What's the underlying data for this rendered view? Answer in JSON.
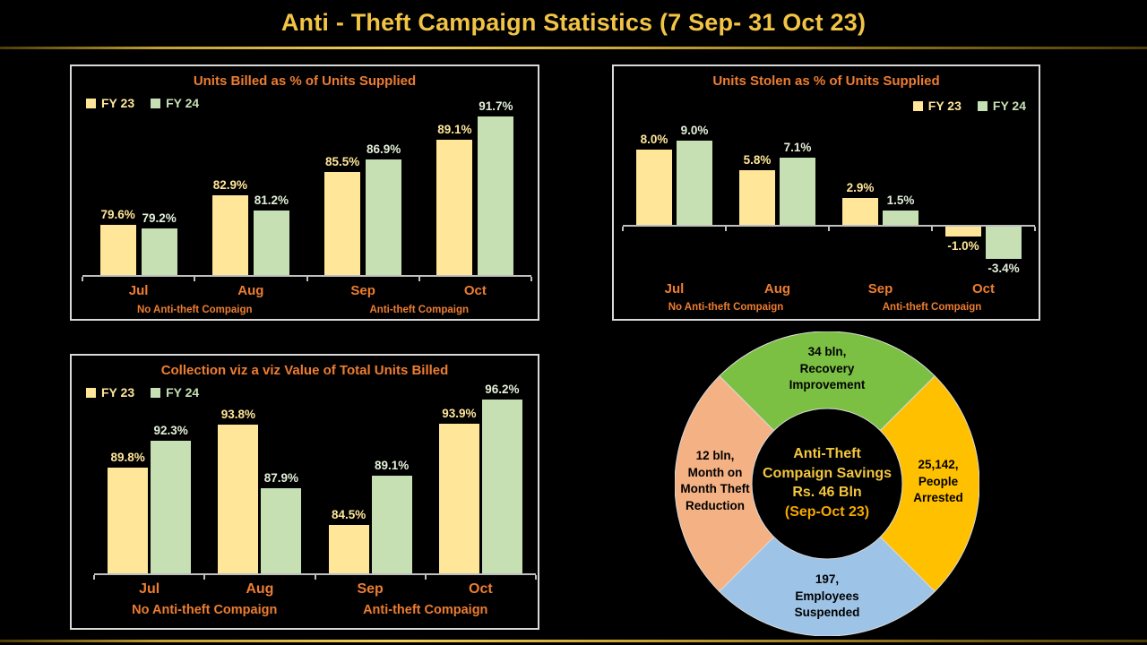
{
  "header": {
    "title": "Anti - Theft Campaign Statistics (7 Sep- 31 Oct 23)",
    "title_color": "#F2C445"
  },
  "colors": {
    "background": "#000000",
    "fy23_bar": "#FFE699",
    "fy24_bar": "#C6E0B4",
    "fy23_label": "#FFE699",
    "fy24_label": "#E2EFD9",
    "chart_title": "#ED7D31",
    "category_label": "#ED7D31",
    "axis": "#BFBFBF",
    "panel_border": "#D9D9D9",
    "gold_accent": "#D9B23C"
  },
  "chart_data": [
    {
      "id": "units-billed",
      "type": "bar",
      "title": "Units Billed as % of Units Supplied",
      "categories": [
        "Jul",
        "Aug",
        "Sep",
        "Oct"
      ],
      "series": [
        {
          "name": "FY 23",
          "values": [
            79.6,
            82.9,
            85.5,
            89.1
          ]
        },
        {
          "name": "FY 24",
          "values": [
            79.2,
            81.2,
            86.9,
            91.7
          ]
        }
      ],
      "unit": "%",
      "group_labels": [
        "No Anti-theft Compaign",
        "Anti-theft Compaign"
      ],
      "legend_position": "top-left",
      "grid": false,
      "ylim": [
        74,
        92
      ]
    },
    {
      "id": "units-stolen",
      "type": "bar",
      "title": "Units Stolen as % of Units Supplied",
      "categories": [
        "Jul",
        "Aug",
        "Sep",
        "Oct"
      ],
      "series": [
        {
          "name": "FY 23",
          "values": [
            8.0,
            5.8,
            2.9,
            -1.0
          ]
        },
        {
          "name": "FY 24",
          "values": [
            9.0,
            7.1,
            1.5,
            -3.4
          ]
        }
      ],
      "unit": "%",
      "group_labels": [
        "No Anti-theft Compaign",
        "Anti-theft Compaign"
      ],
      "legend_position": "top-right",
      "grid": false,
      "ylim": [
        -4,
        10
      ]
    },
    {
      "id": "collection-vs-billed",
      "type": "bar",
      "title": "Collection viz a viz Value of Total Units Billed",
      "categories": [
        "Jul",
        "Aug",
        "Sep",
        "Oct"
      ],
      "series": [
        {
          "name": "FY 23",
          "values": [
            89.8,
            93.8,
            84.5,
            93.9
          ]
        },
        {
          "name": "FY 24",
          "values": [
            92.3,
            87.9,
            89.1,
            96.2
          ]
        }
      ],
      "unit": "%",
      "group_labels": [
        "No Anti-theft Compaign",
        "Anti-theft Compaign"
      ],
      "legend_position": "top-left",
      "grid": false,
      "ylim": [
        80,
        97
      ]
    },
    {
      "id": "campaign-savings-donut",
      "type": "pie",
      "center_lines": [
        "Anti-Theft",
        "Compaign Savings",
        "Rs. 46 Bln",
        "(Sep-Oct 23)"
      ],
      "center_text_color": "#F3C63F",
      "center_date_color": "#F5A800",
      "segments": [
        {
          "position": "top",
          "lines": [
            "34 bln,",
            "Recovery",
            "Improvement"
          ],
          "color": "#7BC043"
        },
        {
          "position": "right",
          "lines": [
            "25,142,",
            "People",
            "Arrested"
          ],
          "color": "#FFC000"
        },
        {
          "position": "bottom",
          "lines": [
            "197,",
            "Employees",
            "Suspended"
          ],
          "color": "#9DC3E6"
        },
        {
          "position": "left",
          "lines": [
            "12 bln,",
            "Month on",
            "Month Theft",
            "Reduction"
          ],
          "color": "#F4B183"
        }
      ]
    }
  ]
}
